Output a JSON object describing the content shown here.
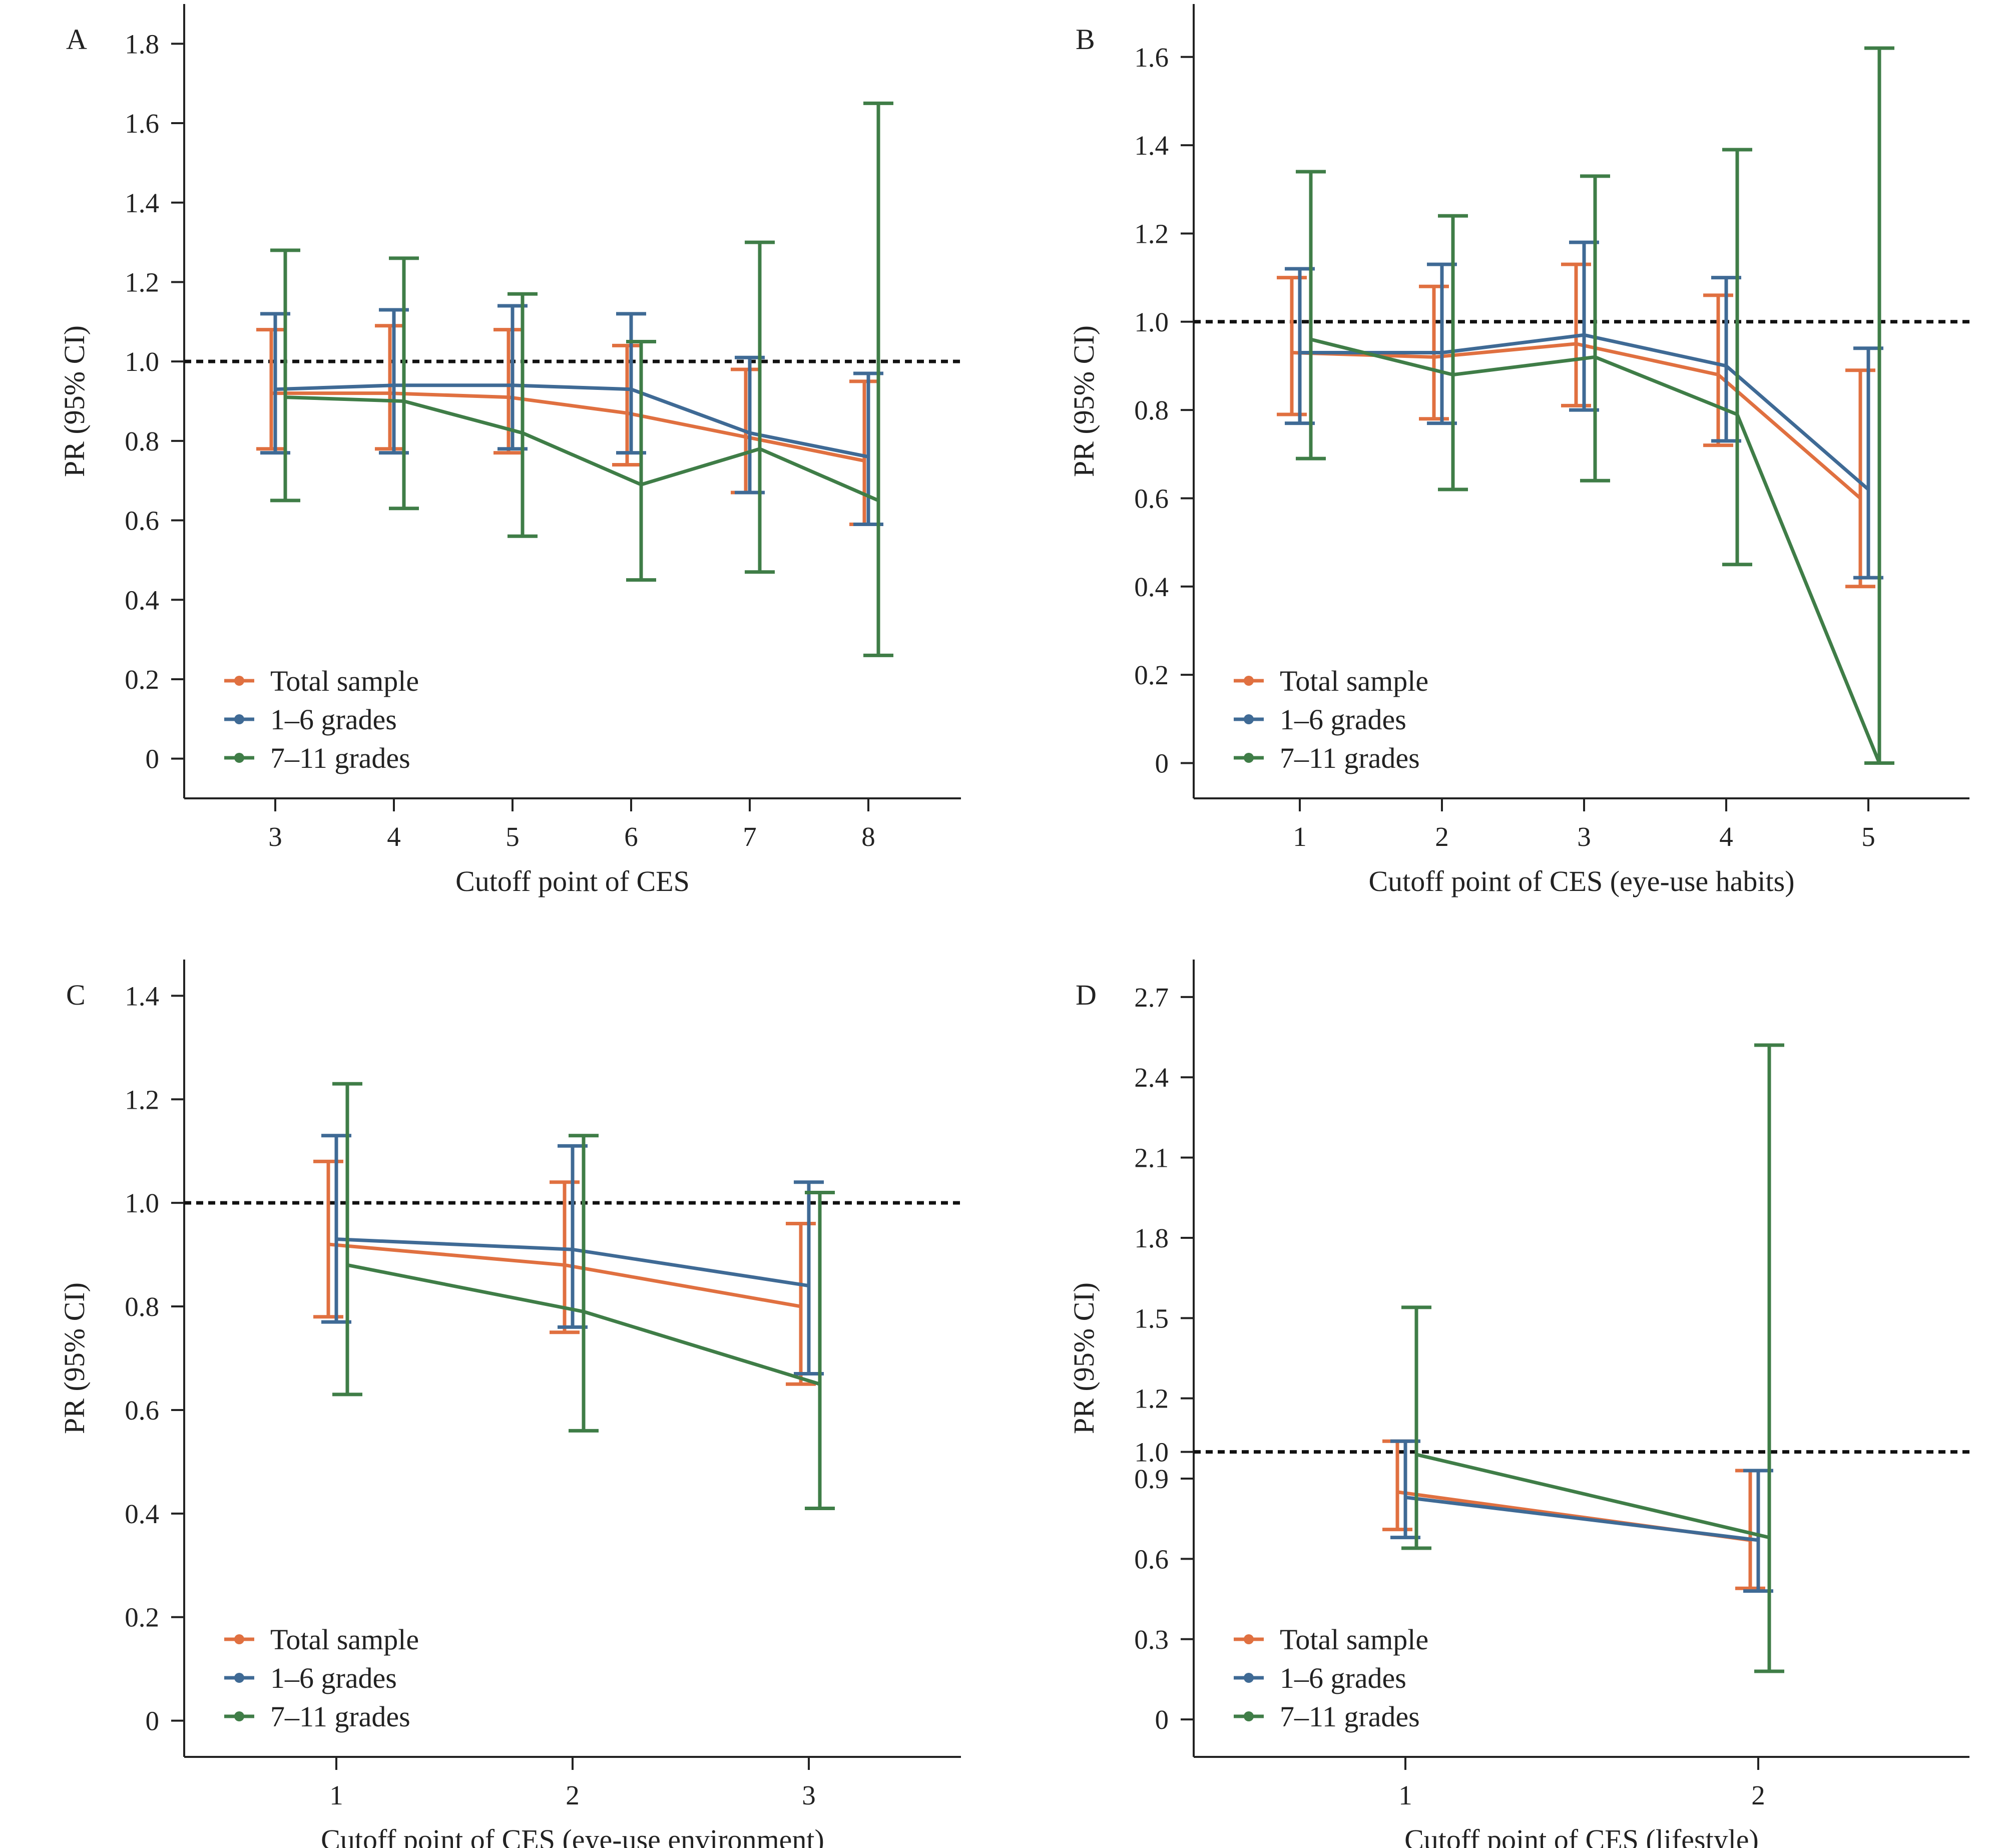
{
  "colors": {
    "total": "#E07040",
    "grades_1_6": "#3F6A95",
    "grades_7_11": "#3F7D47",
    "axis": "#222222"
  },
  "chart_data": [
    {
      "id": "A",
      "type": "line",
      "panel_label": "A",
      "xlabel": "Cutoff point of CES",
      "ylabel": "PR (95% CI)",
      "categories": [
        "3",
        "4",
        "5",
        "6",
        "7",
        "8"
      ],
      "y_ticks": [
        0,
        0.2,
        0.4,
        0.6,
        0.8,
        1.0,
        1.2,
        1.4,
        1.6,
        1.8
      ],
      "y_tick_labels": [
        "0",
        "0.2",
        "0.4",
        "0.6",
        "0.8",
        "1.0",
        "1.2",
        "1.4",
        "1.6",
        "1.8"
      ],
      "ylim": [
        -0.1,
        1.9
      ],
      "reference_line": 1.0,
      "legend_position": "bottom-left",
      "series": [
        {
          "name": "Total sample",
          "key": "total",
          "values": [
            0.92,
            0.92,
            0.91,
            0.87,
            0.81,
            0.75
          ],
          "lower": [
            0.78,
            0.78,
            0.77,
            0.74,
            0.67,
            0.59
          ],
          "upper": [
            1.08,
            1.09,
            1.08,
            1.04,
            0.98,
            0.95
          ]
        },
        {
          "name": "1–6 grades",
          "key": "grades_1_6",
          "values": [
            0.93,
            0.94,
            0.94,
            0.93,
            0.82,
            0.76
          ],
          "lower": [
            0.77,
            0.77,
            0.78,
            0.77,
            0.67,
            0.59
          ],
          "upper": [
            1.12,
            1.13,
            1.14,
            1.12,
            1.01,
            0.97
          ]
        },
        {
          "name": "7–11 grades",
          "key": "grades_7_11",
          "values": [
            0.91,
            0.9,
            0.82,
            0.69,
            0.78,
            0.65
          ],
          "lower": [
            0.65,
            0.63,
            0.56,
            0.45,
            0.47,
            0.26
          ],
          "upper": [
            1.28,
            1.26,
            1.17,
            1.05,
            1.3,
            1.65
          ]
        }
      ]
    },
    {
      "id": "B",
      "type": "line",
      "panel_label": "B",
      "xlabel": "Cutoff point of CES (eye-use habits)",
      "ylabel": "PR (95% CI)",
      "categories": [
        "1",
        "2",
        "3",
        "4",
        "5"
      ],
      "y_ticks": [
        0,
        0.2,
        0.4,
        0.6,
        0.8,
        1.0,
        1.2,
        1.4,
        1.6
      ],
      "y_tick_labels": [
        "0",
        "0.2",
        "0.4",
        "0.6",
        "0.8",
        "1.0",
        "1.2",
        "1.4",
        "1.6"
      ],
      "ylim": [
        -0.08,
        1.72
      ],
      "reference_line": 1.0,
      "legend_position": "bottom-left",
      "series": [
        {
          "name": "Total sample",
          "key": "total",
          "values": [
            0.93,
            0.92,
            0.95,
            0.88,
            0.6
          ],
          "lower": [
            0.79,
            0.78,
            0.81,
            0.72,
            0.4
          ],
          "upper": [
            1.1,
            1.08,
            1.13,
            1.06,
            0.89
          ]
        },
        {
          "name": "1–6 grades",
          "key": "grades_1_6",
          "values": [
            0.93,
            0.93,
            0.97,
            0.9,
            0.62
          ],
          "lower": [
            0.77,
            0.77,
            0.8,
            0.73,
            0.42
          ],
          "upper": [
            1.12,
            1.13,
            1.18,
            1.1,
            0.94
          ]
        },
        {
          "name": "7–11 grades",
          "key": "grades_7_11",
          "values": [
            0.96,
            0.88,
            0.92,
            0.79,
            0.0
          ],
          "lower": [
            0.69,
            0.62,
            0.64,
            0.45,
            0.0
          ],
          "upper": [
            1.34,
            1.24,
            1.33,
            1.39,
            1.62
          ]
        }
      ]
    },
    {
      "id": "C",
      "type": "line",
      "panel_label": "C",
      "xlabel": "Cutoff point of CES (eye-use environment)",
      "ylabel": "PR (95% CI)",
      "categories": [
        "1",
        "2",
        "3"
      ],
      "y_ticks": [
        0,
        0.2,
        0.4,
        0.6,
        0.8,
        1.0,
        1.2,
        1.4
      ],
      "y_tick_labels": [
        "0",
        "0.2",
        "0.4",
        "0.6",
        "0.8",
        "1.0",
        "1.2",
        "1.4"
      ],
      "ylim": [
        -0.07,
        1.47
      ],
      "reference_line": 1.0,
      "legend_position": "bottom-left",
      "series": [
        {
          "name": "Total sample",
          "key": "total",
          "values": [
            0.92,
            0.88,
            0.8
          ],
          "lower": [
            0.78,
            0.75,
            0.65
          ],
          "upper": [
            1.08,
            1.04,
            0.96
          ]
        },
        {
          "name": "1–6 grades",
          "key": "grades_1_6",
          "values": [
            0.93,
            0.91,
            0.84
          ],
          "lower": [
            0.77,
            0.76,
            0.67
          ],
          "upper": [
            1.13,
            1.11,
            1.04
          ]
        },
        {
          "name": "7–11 grades",
          "key": "grades_7_11",
          "values": [
            0.88,
            0.79,
            0.65
          ],
          "lower": [
            0.63,
            0.56,
            0.41
          ],
          "upper": [
            1.23,
            1.13,
            1.02
          ]
        }
      ]
    },
    {
      "id": "D",
      "type": "line",
      "panel_label": "D",
      "xlabel": "Cutoff point of CES (lifestyle)",
      "ylabel": "PR (95% CI)",
      "categories": [
        "1",
        "2"
      ],
      "y_ticks": [
        0,
        0.3,
        0.6,
        0.9,
        1.0,
        1.2,
        1.5,
        1.8,
        2.1,
        2.4,
        2.7
      ],
      "y_tick_labels": [
        "0",
        "0.3",
        "0.6",
        "0.9",
        "1.0",
        "1.2",
        "1.5",
        "1.8",
        "2.1",
        "2.4",
        "2.7"
      ],
      "ylim": [
        -0.14,
        2.84
      ],
      "reference_line": 1.0,
      "legend_position": "bottom-left",
      "series": [
        {
          "name": "Total sample",
          "key": "total",
          "values": [
            0.85,
            0.67
          ],
          "lower": [
            0.71,
            0.49
          ],
          "upper": [
            1.04,
            0.93
          ]
        },
        {
          "name": "1–6 grades",
          "key": "grades_1_6",
          "values": [
            0.83,
            0.67
          ],
          "lower": [
            0.68,
            0.48
          ],
          "upper": [
            1.04,
            0.93
          ]
        },
        {
          "name": "7–11 grades",
          "key": "grades_7_11",
          "values": [
            0.99,
            0.68
          ],
          "lower": [
            0.64,
            0.18
          ],
          "upper": [
            1.54,
            2.52
          ]
        }
      ]
    }
  ]
}
